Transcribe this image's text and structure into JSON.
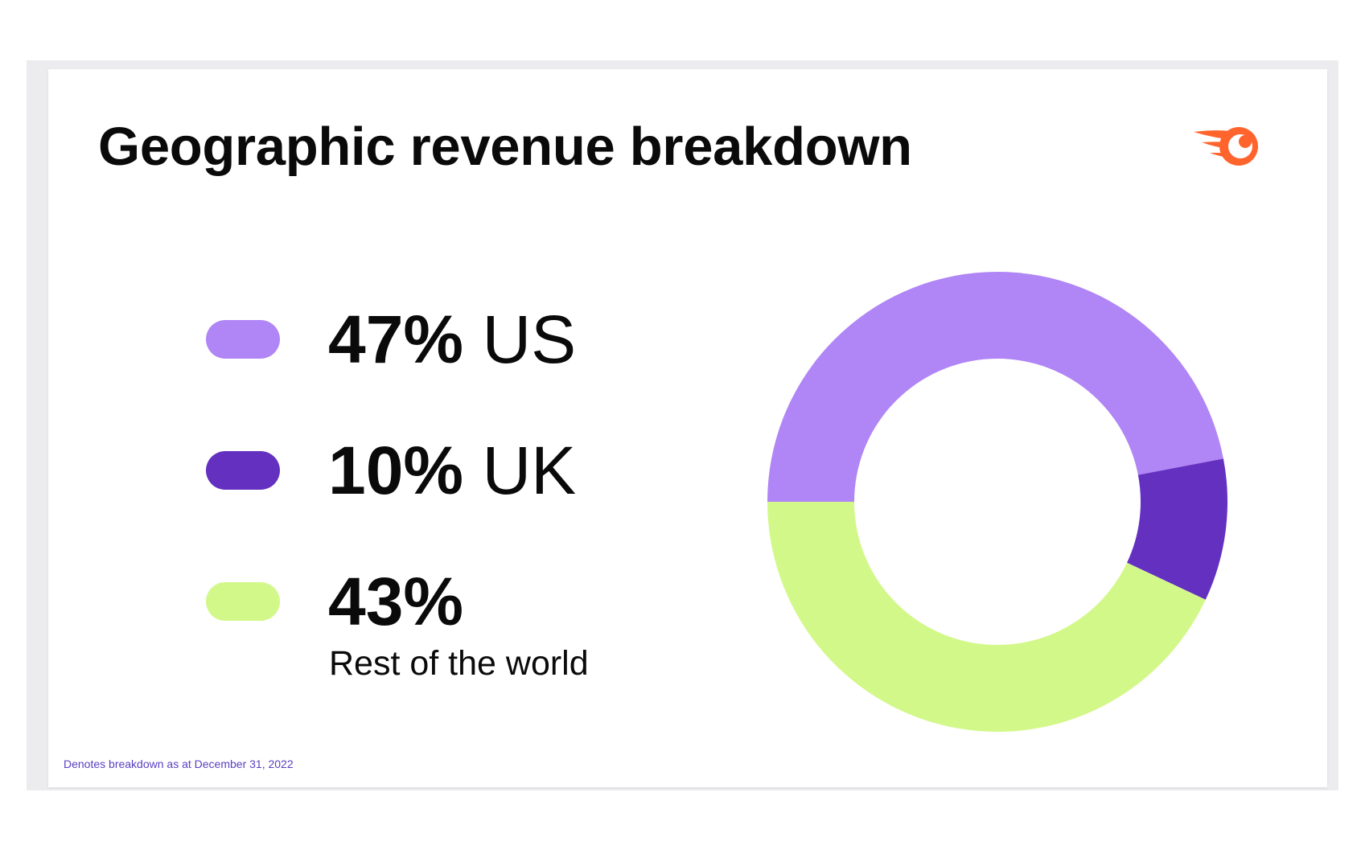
{
  "slide": {
    "title": "Geographic revenue breakdown",
    "footnote": "Denotes breakdown as at December 31, 2022",
    "logo_icon": "semrush-fireball-logo"
  },
  "legend": [
    {
      "percent": "47%",
      "region": " US",
      "sublabel": "",
      "color": "#b085f5"
    },
    {
      "percent": "10%",
      "region": " UK",
      "sublabel": "",
      "color": "#6430c0"
    },
    {
      "percent": "43%",
      "region": "",
      "sublabel": "Rest of the world",
      "color": "#d3f88a"
    }
  ],
  "colors": {
    "accent_logo": "#ff642d",
    "footnote": "#5a3fc0"
  },
  "chart_data": {
    "type": "pie",
    "variant": "donut",
    "title": "Geographic revenue breakdown",
    "categories": [
      "US",
      "UK",
      "Rest of the world"
    ],
    "values": [
      47,
      10,
      43
    ],
    "units": "%",
    "colors": [
      "#b085f5",
      "#6430c0",
      "#d3f88a"
    ]
  }
}
